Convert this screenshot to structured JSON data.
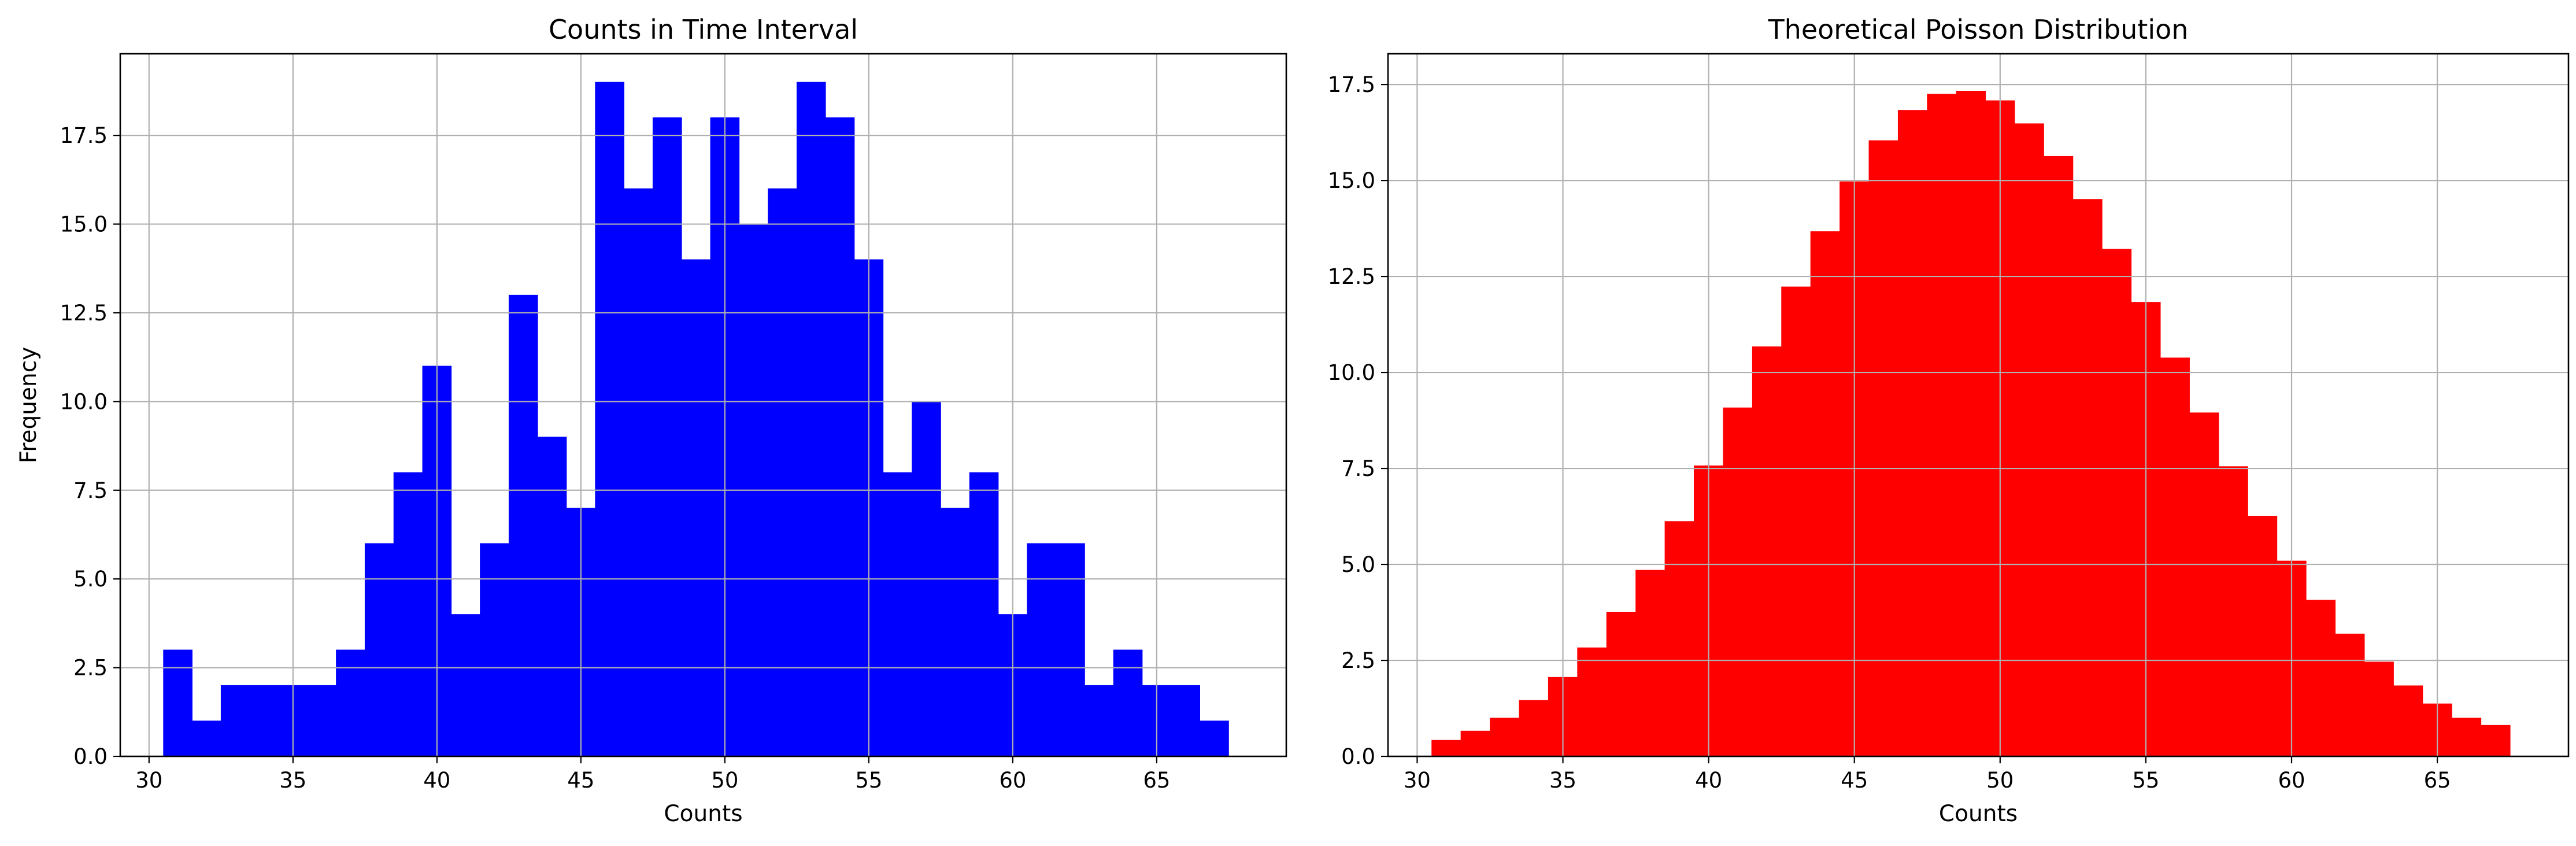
{
  "chart_data": [
    {
      "type": "bar",
      "title": "Counts in Time Interval",
      "xlabel": "Counts",
      "ylabel": "Frequency",
      "xlim": [
        29,
        69.5
      ],
      "ylim": [
        0,
        19.8
      ],
      "xticks": [
        "30",
        "35",
        "40",
        "45",
        "50",
        "55",
        "60",
        "65"
      ],
      "yticks": [
        "0.0",
        "2.5",
        "5.0",
        "7.5",
        "10.0",
        "12.5",
        "15.0",
        "17.5"
      ],
      "grid": true,
      "color": "#0000ff",
      "bin_width": 1,
      "x": [
        31,
        32,
        33,
        34,
        35,
        36,
        37,
        38,
        39,
        40,
        41,
        42,
        43,
        44,
        45,
        46,
        47,
        48,
        49,
        50,
        51,
        52,
        53,
        54,
        55,
        56,
        57,
        58,
        59,
        60,
        61,
        62,
        63,
        64,
        65,
        66,
        67
      ],
      "values": [
        3,
        1,
        2,
        2,
        2,
        2,
        3,
        6,
        8,
        11,
        4,
        6,
        13,
        9,
        7,
        19,
        16,
        18,
        14,
        18,
        15,
        16,
        19,
        18,
        14,
        8,
        10,
        7,
        8,
        4,
        6,
        6,
        2,
        3,
        2,
        2,
        1
      ]
    },
    {
      "type": "bar",
      "title": "Theoretical Poisson Distribution",
      "xlabel": "Counts",
      "ylabel": "",
      "xlim": [
        29,
        69.5
      ],
      "ylim": [
        0,
        18.3
      ],
      "xticks": [
        "30",
        "35",
        "40",
        "45",
        "50",
        "55",
        "60",
        "65"
      ],
      "yticks": [
        "0.0",
        "2.5",
        "5.0",
        "7.5",
        "10.0",
        "12.5",
        "15.0",
        "17.5"
      ],
      "grid": true,
      "color": "#ff0000",
      "bin_width": 1,
      "x": [
        31,
        32,
        33,
        34,
        35,
        36,
        37,
        38,
        39,
        40,
        41,
        42,
        43,
        44,
        45,
        46,
        47,
        48,
        49,
        50,
        51,
        52,
        53,
        54,
        55,
        56,
        57,
        58,
        59,
        60,
        61,
        62,
        63,
        64,
        65,
        66,
        67
      ],
      "values": [
        0.42,
        0.66,
        1.0,
        1.46,
        2.06,
        2.83,
        3.76,
        4.85,
        6.12,
        7.57,
        9.08,
        10.67,
        12.23,
        13.67,
        14.97,
        16.04,
        16.83,
        17.25,
        17.33,
        17.08,
        16.48,
        15.63,
        14.51,
        13.21,
        11.83,
        10.38,
        8.95,
        7.55,
        6.26,
        5.09,
        4.07,
        3.19,
        2.46,
        1.84,
        1.37,
        1.0,
        0.81
      ]
    }
  ]
}
